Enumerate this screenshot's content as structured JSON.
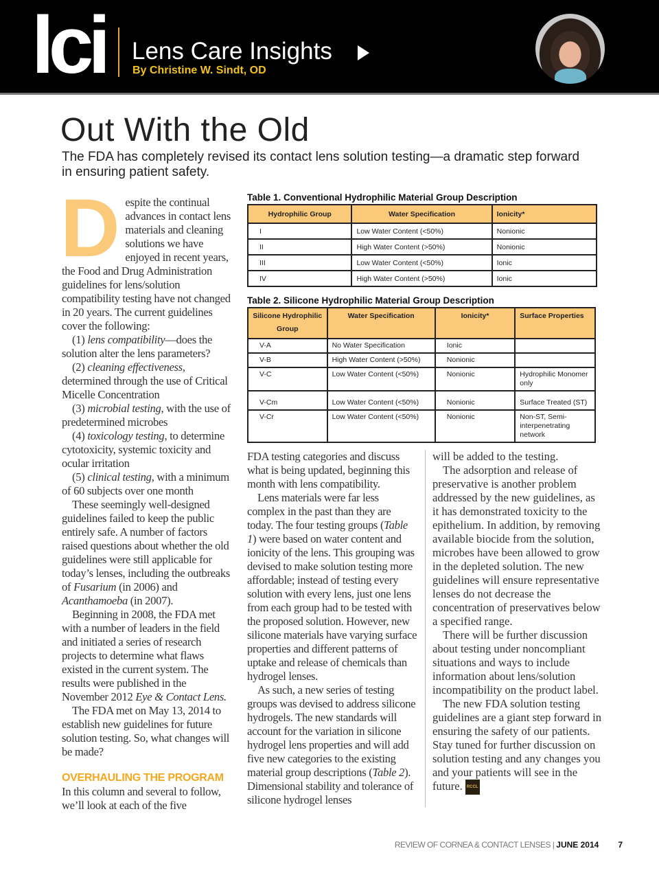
{
  "header": {
    "logo": "lci",
    "series": "Lens Care Insights",
    "byline": "By Christine W. Sindt, OD",
    "icons": [
      "play-triangle-icon",
      "author-photo"
    ]
  },
  "article": {
    "title": "Out With the Old",
    "subtitle": "The FDA has completely revised its contact lens solution testing—a dramatic step forward in ensuring patient safety.",
    "drop_cap": "D",
    "subheading": "OVERHAULING THE PROGRAM",
    "col1": [
      [
        {
          "t": "espite the continual advances in contact lens materials and cleaning solutions we have enjoyed in recent years, the Food and Drug Administration guidelines for lens/solution compatibility testing have not changed in 20 years. The current guidelines cover the following:"
        }
      ],
      [
        {
          "t": "(1) "
        },
        {
          "t": "lens compatibility",
          "i": true
        },
        {
          "t": "—does the solution alter the lens parameters?"
        }
      ],
      [
        {
          "t": "(2) "
        },
        {
          "t": "cleaning effectiveness",
          "i": true
        },
        {
          "t": ", determined through the use of Critical Micelle Concentration"
        }
      ],
      [
        {
          "t": "(3) "
        },
        {
          "t": "microbial testing",
          "i": true
        },
        {
          "t": ", with the use of predetermined microbes"
        }
      ],
      [
        {
          "t": "(4) "
        },
        {
          "t": "toxicology testing",
          "i": true
        },
        {
          "t": ", to determine cytotoxicity, systemic toxicity and ocular irritation"
        }
      ],
      [
        {
          "t": "(5) "
        },
        {
          "t": "clinical testing",
          "i": true
        },
        {
          "t": ", with a minimum of 60 subjects over one month"
        }
      ],
      [
        {
          "t": "These seemingly well-designed guidelines failed to keep the public entirely safe. A number of factors raised questions about whether the old guidelines were still applicable for today’s lenses, including the outbreaks of "
        },
        {
          "t": "Fusarium",
          "i": true
        },
        {
          "t": " (in 2006) and "
        },
        {
          "t": "Acanthamoeba",
          "i": true
        },
        {
          "t": " (in 2007)."
        }
      ],
      [
        {
          "t": "Beginning in 2008, the FDA met with a number of leaders in the field and initiated a series of research projects to determine what flaws existed in the current system. The results were published in the November 2012 "
        },
        {
          "t": "Eye & Contact Lens.",
          "i": true
        }
      ],
      [
        {
          "t": "The FDA met on May 13, 2014 to establish new guidelines for future solution testing. So, what changes will be made?"
        }
      ]
    ],
    "col1_after": [
      [
        {
          "t": "In this column and several to follow, we’ll look at each of the five"
        }
      ]
    ],
    "col2": [
      [
        {
          "t": "FDA testing categories and discuss what is being updated, beginning this month with lens compatibility."
        }
      ],
      [
        {
          "t": "Lens materials were far less complex in the past than they are today. The four testing groups ("
        },
        {
          "t": "Table 1",
          "i": true
        },
        {
          "t": ") were based on water content and ionicity of the lens. This grouping was devised to make solution testing more affordable; instead of testing every solution with every lens, just one lens from each group had to be tested with the proposed solution. However, new silicone materials have varying surface properties and different patterns of uptake and release of chemicals than hydrogel lenses."
        }
      ],
      [
        {
          "t": "As such, a new series of testing groups was devised to address silicone hydrogels. The new standards will account for the variation in silicone hydrogel lens properties and will add five new categories to the existing material group descriptions ("
        },
        {
          "t": "Table 2",
          "i": true
        },
        {
          "t": "). Dimensional stability and tolerance of silicone hydrogel lenses"
        }
      ]
    ],
    "col3": [
      [
        {
          "t": "will be added to the testing."
        }
      ],
      [
        {
          "t": "The adsorption and release of preservative is another problem addressed by the new guidelines, as it has demonstrated toxicity to the epithelium. In addition, by removing available biocide from the solution, microbes have been allowed to grow in the depleted solution. The new guidelines will ensure representative lenses do not decrease the concentration of preservatives below a specified range."
        }
      ],
      [
        {
          "t": "There will be further discussion about testing under noncompliant situations and ways to include information about lens/solution incompatibility on the product label."
        }
      ],
      [
        {
          "t": "The new FDA solution testing guidelines are a giant step forward in ensuring the safety of our patients. Stay tuned for further discussion on solution testing and any changes you and your patients will see in the future. "
        }
      ]
    ],
    "end_badge": "RCCL"
  },
  "table1": {
    "title": "Table 1. Conventional Hydrophilic Material Group Description",
    "headers": [
      "Hydrophilic Group",
      "Water Specification",
      "Ionicity*"
    ],
    "rows": [
      [
        "I",
        "Low Water Content (<50%)",
        "Nonionic"
      ],
      [
        "II",
        "High Water Content (>50%)",
        "Nonionic"
      ],
      [
        "III",
        "Low Water Content (<50%)",
        "Ionic"
      ],
      [
        "IV",
        "High Water Content  (>50%)",
        "Ionic"
      ]
    ],
    "header_color": "#fbc97a"
  },
  "table2": {
    "title": "Table 2. Silicone Hydrophilic Material Group Description",
    "headers": [
      "Silicone Hydrophilic Group",
      "Water Specification",
      "Ionicity*",
      "Surface Properties"
    ],
    "rows": [
      [
        "V-A",
        "No Water Specification",
        "Ionic",
        ""
      ],
      [
        "V-B",
        "High Water Content (>50%)",
        "Nonionic",
        ""
      ],
      [
        "V-C",
        "Low Water Content (<50%)",
        "Nonionic",
        "Hydrophilic Monomer only"
      ],
      [
        "V-Cm",
        "Low Water Content (<50%)",
        "Nonionic",
        "Surface Treated (ST)"
      ],
      [
        "V-Cr",
        "Low Water Content (<50%)",
        "Nonionic",
        "Non-ST, Semi-interpenetrating network"
      ]
    ]
  },
  "footer": {
    "publication": "REVIEW OF CORNEA & CONTACT LENSES | ",
    "issue": "JUNE 2014",
    "page": "7"
  }
}
